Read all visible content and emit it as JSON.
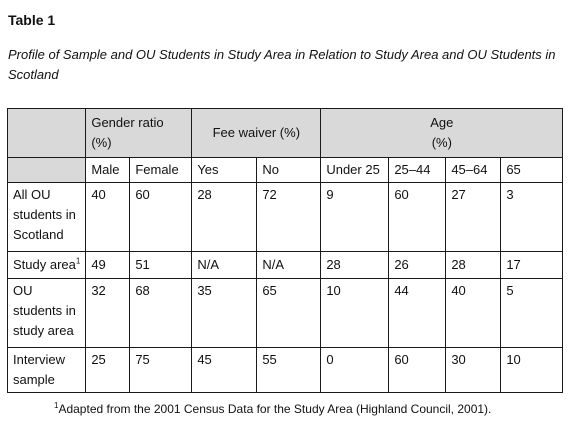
{
  "title": "Table 1",
  "caption": "Profile of Sample and OU Students in Study Area in Relation to Study Area and OU Students in Scotland",
  "table": {
    "group_headers": {
      "gender": "Gender ratio (%)",
      "fee": "Fee waiver (%)",
      "age": "Age (%)"
    },
    "sub_headers": [
      "Male",
      "Female",
      "Yes",
      "No",
      "Under 25",
      "25–44",
      "45–64",
      "65"
    ],
    "rows": [
      {
        "label": "All OU students in Scotland",
        "values": [
          "40",
          "60",
          "28",
          "72",
          "9",
          "60",
          "27",
          "3"
        ]
      },
      {
        "label": "Study area",
        "label_sup": "1",
        "values": [
          "49",
          "51",
          "N/A",
          "N/A",
          "28",
          "26",
          "28",
          "17"
        ]
      },
      {
        "label": "OU students in study area",
        "values": [
          "32",
          "68",
          "35",
          "65",
          "10",
          "44",
          "40",
          "5"
        ]
      },
      {
        "label": "Interview sample",
        "values": [
          "25",
          "75",
          "45",
          "55",
          "0",
          "60",
          "30",
          "10"
        ]
      }
    ]
  },
  "footnote": {
    "marker": "1",
    "text": "Adapted from the 2001 Census Data for the Study Area (Highland Council, 2001)."
  }
}
